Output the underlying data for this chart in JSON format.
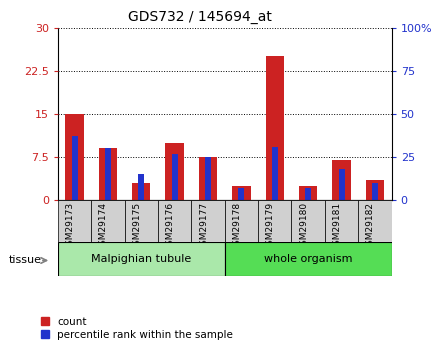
{
  "title": "GDS732 / 145694_at",
  "samples": [
    "GSM29173",
    "GSM29174",
    "GSM29175",
    "GSM29176",
    "GSM29177",
    "GSM29178",
    "GSM29179",
    "GSM29180",
    "GSM29181",
    "GSM29182"
  ],
  "count_values": [
    15.0,
    9.0,
    3.0,
    10.0,
    7.5,
    2.5,
    25.0,
    2.5,
    7.0,
    3.5
  ],
  "percentile_values": [
    11.1,
    9.0,
    4.5,
    8.1,
    7.5,
    2.1,
    9.3,
    2.1,
    5.4,
    3.0
  ],
  "left_ylim": [
    0,
    30
  ],
  "right_ylim": [
    0,
    100
  ],
  "left_yticks": [
    0,
    7.5,
    15,
    22.5,
    30
  ],
  "right_yticks": [
    0,
    25,
    50,
    75,
    100
  ],
  "left_yticklabels": [
    "0",
    "7.5",
    "15",
    "22.5",
    "30"
  ],
  "right_yticklabels": [
    "0",
    "25",
    "50",
    "75",
    "100%"
  ],
  "bar_color_red": "#cc2222",
  "bar_color_blue": "#2233cc",
  "red_bar_width": 0.55,
  "blue_bar_width": 0.18,
  "tissue_groups": [
    {
      "label": "Malpighian tubule",
      "indices": [
        0,
        1,
        2,
        3,
        4
      ],
      "color": "#aae8aa"
    },
    {
      "label": "whole organism",
      "indices": [
        5,
        6,
        7,
        8,
        9
      ],
      "color": "#55dd55"
    }
  ],
  "tissue_label": "tissue",
  "legend_count": "count",
  "legend_percentile": "percentile rank within the sample",
  "plot_bg": "#ffffff",
  "xtick_box_color": "#cccccc",
  "grid_linestyle": "dotted",
  "grid_color": "#000000"
}
